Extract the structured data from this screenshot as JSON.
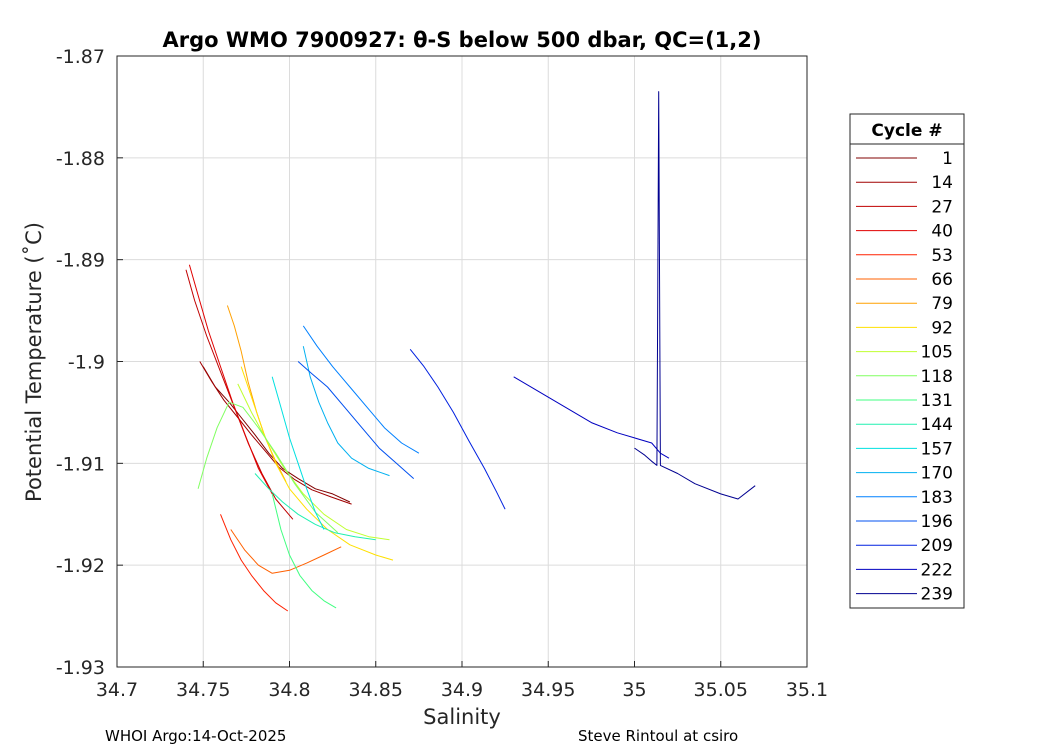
{
  "chart_data": {
    "type": "line",
    "title": "Argo WMO 7900927: θ-S below 500 dbar,  QC=(1,2)",
    "xlabel": "Salinity",
    "ylabel": "Potential Temperature (˚C)",
    "xlim": [
      34.7,
      35.1
    ],
    "ylim": [
      -1.93,
      -1.87
    ],
    "xticks": [
      "34.7",
      "34.75",
      "34.8",
      "34.85",
      "34.9",
      "34.95",
      "35",
      "35.05",
      "35.1"
    ],
    "yticks": [
      "-1.93",
      "-1.92",
      "-1.91",
      "-1.9",
      "-1.89",
      "-1.88",
      "-1.87"
    ],
    "grid": true,
    "legend": {
      "title": "Cycle #",
      "placement": "right",
      "entries": [
        {
          "name": "1",
          "color": "#800000"
        },
        {
          "name": "14",
          "color": "#a00000"
        },
        {
          "name": "27",
          "color": "#c00000"
        },
        {
          "name": "40",
          "color": "#e00000"
        },
        {
          "name": "53",
          "color": "#ff2000"
        },
        {
          "name": "66",
          "color": "#ff6000"
        },
        {
          "name": "79",
          "color": "#ffa000"
        },
        {
          "name": "92",
          "color": "#ffe000"
        },
        {
          "name": "105",
          "color": "#c0ff30"
        },
        {
          "name": "118",
          "color": "#80ff60"
        },
        {
          "name": "131",
          "color": "#40ff80"
        },
        {
          "name": "144",
          "color": "#20f0b0"
        },
        {
          "name": "157",
          "color": "#00e0e0"
        },
        {
          "name": "170",
          "color": "#00b0f0"
        },
        {
          "name": "183",
          "color": "#0080ff"
        },
        {
          "name": "196",
          "color": "#0050f0"
        },
        {
          "name": "209",
          "color": "#0020e0"
        },
        {
          "name": "222",
          "color": "#0000c0"
        },
        {
          "name": "239",
          "color": "#000090"
        }
      ]
    },
    "series": [
      {
        "name": "1",
        "color": "#800000",
        "x": [
          34.75,
          34.757,
          34.765,
          34.772,
          34.78,
          34.788,
          34.796,
          34.805,
          34.815,
          34.825,
          34.835
        ],
        "y": [
          -1.9005,
          -1.9025,
          -1.904,
          -1.9055,
          -1.9072,
          -1.909,
          -1.9105,
          -1.9115,
          -1.9125,
          -1.913,
          -1.9138
        ]
      },
      {
        "name": "14",
        "color": "#a00000",
        "x": [
          34.748,
          34.755,
          34.762,
          34.77,
          34.778,
          34.786,
          34.794,
          34.803,
          34.813,
          34.824,
          34.836
        ],
        "y": [
          -1.9,
          -1.902,
          -1.9038,
          -1.9055,
          -1.9072,
          -1.9088,
          -1.9104,
          -1.9116,
          -1.9126,
          -1.9133,
          -1.914
        ]
      },
      {
        "name": "27",
        "color": "#c00000",
        "x": [
          34.74,
          34.745,
          34.752,
          34.76,
          34.768,
          34.776,
          34.784,
          34.792,
          34.802
        ],
        "y": [
          -1.891,
          -1.894,
          -1.8975,
          -1.901,
          -1.9045,
          -1.908,
          -1.911,
          -1.9135,
          -1.9155
        ]
      },
      {
        "name": "40",
        "color": "#e00000",
        "x": [
          34.742,
          34.747,
          34.753,
          34.76,
          34.767,
          34.775,
          34.782,
          34.79
        ],
        "y": [
          -1.8905,
          -1.8935,
          -1.897,
          -1.9005,
          -1.904,
          -1.9075,
          -1.9105,
          -1.913
        ]
      },
      {
        "name": "53",
        "color": "#ff2000",
        "x": [
          34.76,
          34.766,
          34.772,
          34.778,
          34.785,
          34.792,
          34.799
        ],
        "y": [
          -1.915,
          -1.9175,
          -1.9195,
          -1.921,
          -1.9225,
          -1.9237,
          -1.9245
        ]
      },
      {
        "name": "66",
        "color": "#ff6000",
        "x": [
          34.766,
          34.774,
          34.782,
          34.79,
          34.8,
          34.81,
          34.82,
          34.83
        ],
        "y": [
          -1.9165,
          -1.9185,
          -1.92,
          -1.9208,
          -1.9205,
          -1.9198,
          -1.919,
          -1.9182
        ]
      },
      {
        "name": "79",
        "color": "#ffa000",
        "x": [
          34.764,
          34.768,
          34.772,
          34.776,
          34.781,
          34.786,
          34.792,
          34.798
        ],
        "y": [
          -1.8945,
          -1.8965,
          -1.899,
          -1.902,
          -1.905,
          -1.9075,
          -1.9098,
          -1.9118
        ]
      },
      {
        "name": "92",
        "color": "#ffe000",
        "x": [
          34.772,
          34.778,
          34.785,
          34.792,
          34.8,
          34.81,
          34.822,
          34.835,
          34.85,
          34.86
        ],
        "y": [
          -1.9005,
          -1.9035,
          -1.907,
          -1.91,
          -1.9125,
          -1.9145,
          -1.9165,
          -1.918,
          -1.919,
          -1.9195
        ]
      },
      {
        "name": "105",
        "color": "#c0ff30",
        "x": [
          34.77,
          34.778,
          34.787,
          34.797,
          34.808,
          34.82,
          34.833,
          34.846,
          34.858
        ],
        "y": [
          -1.9022,
          -1.905,
          -1.9078,
          -1.9105,
          -1.913,
          -1.915,
          -1.9165,
          -1.9172,
          -1.9175
        ]
      },
      {
        "name": "118",
        "color": "#80ff60",
        "x": [
          34.747,
          34.752,
          34.758,
          34.765,
          34.773,
          34.782,
          34.792,
          34.803,
          34.815,
          34.828
        ],
        "y": [
          -1.9125,
          -1.9095,
          -1.9065,
          -1.904,
          -1.9045,
          -1.9065,
          -1.909,
          -1.912,
          -1.9148,
          -1.9168
        ]
      },
      {
        "name": "131",
        "color": "#40ff80",
        "x": [
          34.79,
          34.795,
          34.8,
          34.806,
          34.813,
          34.82,
          34.827
        ],
        "y": [
          -1.913,
          -1.9165,
          -1.919,
          -1.921,
          -1.9225,
          -1.9235,
          -1.9242
        ]
      },
      {
        "name": "144",
        "color": "#20f0b0",
        "x": [
          34.78,
          34.788,
          34.796,
          34.805,
          34.815,
          34.826,
          34.838,
          34.85
        ],
        "y": [
          -1.911,
          -1.9125,
          -1.9138,
          -1.915,
          -1.916,
          -1.9168,
          -1.9172,
          -1.9175
        ]
      },
      {
        "name": "157",
        "color": "#00e0e0",
        "x": [
          34.79,
          34.795,
          34.8,
          34.805,
          34.81,
          34.815,
          34.82
        ],
        "y": [
          -1.9015,
          -1.9045,
          -1.9075,
          -1.91,
          -1.9125,
          -1.9148,
          -1.9165
        ]
      },
      {
        "name": "170",
        "color": "#00b0f0",
        "x": [
          34.808,
          34.812,
          34.817,
          34.822,
          34.828,
          34.836,
          34.846,
          34.858
        ],
        "y": [
          -1.8985,
          -1.9015,
          -1.904,
          -1.906,
          -1.908,
          -1.9095,
          -1.9105,
          -1.9112
        ]
      },
      {
        "name": "183",
        "color": "#0080ff",
        "x": [
          34.808,
          34.816,
          34.825,
          34.835,
          34.845,
          34.855,
          34.865,
          34.875
        ],
        "y": [
          -1.8965,
          -1.8985,
          -1.9005,
          -1.9025,
          -1.9045,
          -1.9065,
          -1.908,
          -1.909
        ]
      },
      {
        "name": "196",
        "color": "#0050f0",
        "x": [
          34.805,
          34.813,
          34.822,
          34.832,
          34.842,
          34.852,
          34.862,
          34.872
        ],
        "y": [
          -1.9,
          -1.9012,
          -1.9025,
          -1.9045,
          -1.9065,
          -1.9085,
          -1.91,
          -1.9115
        ]
      },
      {
        "name": "209",
        "color": "#0020e0",
        "x": [
          34.87,
          34.878,
          34.886,
          34.895,
          34.904,
          34.913,
          34.92,
          34.925
        ],
        "y": [
          -1.8988,
          -1.9005,
          -1.9025,
          -1.905,
          -1.9078,
          -1.9105,
          -1.9128,
          -1.9145
        ]
      },
      {
        "name": "222",
        "color": "#0000c0",
        "x": [
          34.93,
          34.945,
          34.96,
          34.975,
          34.99,
          35.0,
          35.01,
          35.015,
          35.02
        ],
        "y": [
          -1.9015,
          -1.903,
          -1.9045,
          -1.906,
          -1.907,
          -1.9075,
          -1.908,
          -1.909,
          -1.9095
        ]
      },
      {
        "name": "239",
        "color": "#000090",
        "x": [
          35.0,
          35.006,
          35.01,
          35.013,
          35.0135,
          35.014,
          35.015,
          35.025,
          35.035,
          35.05,
          35.06,
          35.07
        ],
        "y": [
          -1.9085,
          -1.9092,
          -1.9098,
          -1.9102,
          -1.8925,
          -1.8735,
          -1.9102,
          -1.911,
          -1.912,
          -1.913,
          -1.9135,
          -1.9122
        ]
      }
    ]
  },
  "footer": {
    "left": "WHOI Argo:14-Oct-2025",
    "right": "Steve Rintoul at csiro"
  }
}
